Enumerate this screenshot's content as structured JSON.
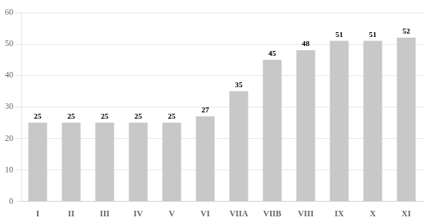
{
  "chart_data": {
    "type": "bar",
    "categories": [
      "I",
      "II",
      "III",
      "IV",
      "V",
      "VI",
      "VIIA",
      "VIIB",
      "VIII",
      "IX",
      "X",
      "XI"
    ],
    "values": [
      25,
      25,
      25,
      25,
      25,
      27,
      35,
      45,
      48,
      51,
      51,
      52
    ],
    "color": "#c8c8c8",
    "ylim": [
      0,
      60
    ],
    "yticks": [
      0,
      10,
      20,
      30,
      40,
      50,
      60
    ],
    "grid": true,
    "data_labels": true
  }
}
